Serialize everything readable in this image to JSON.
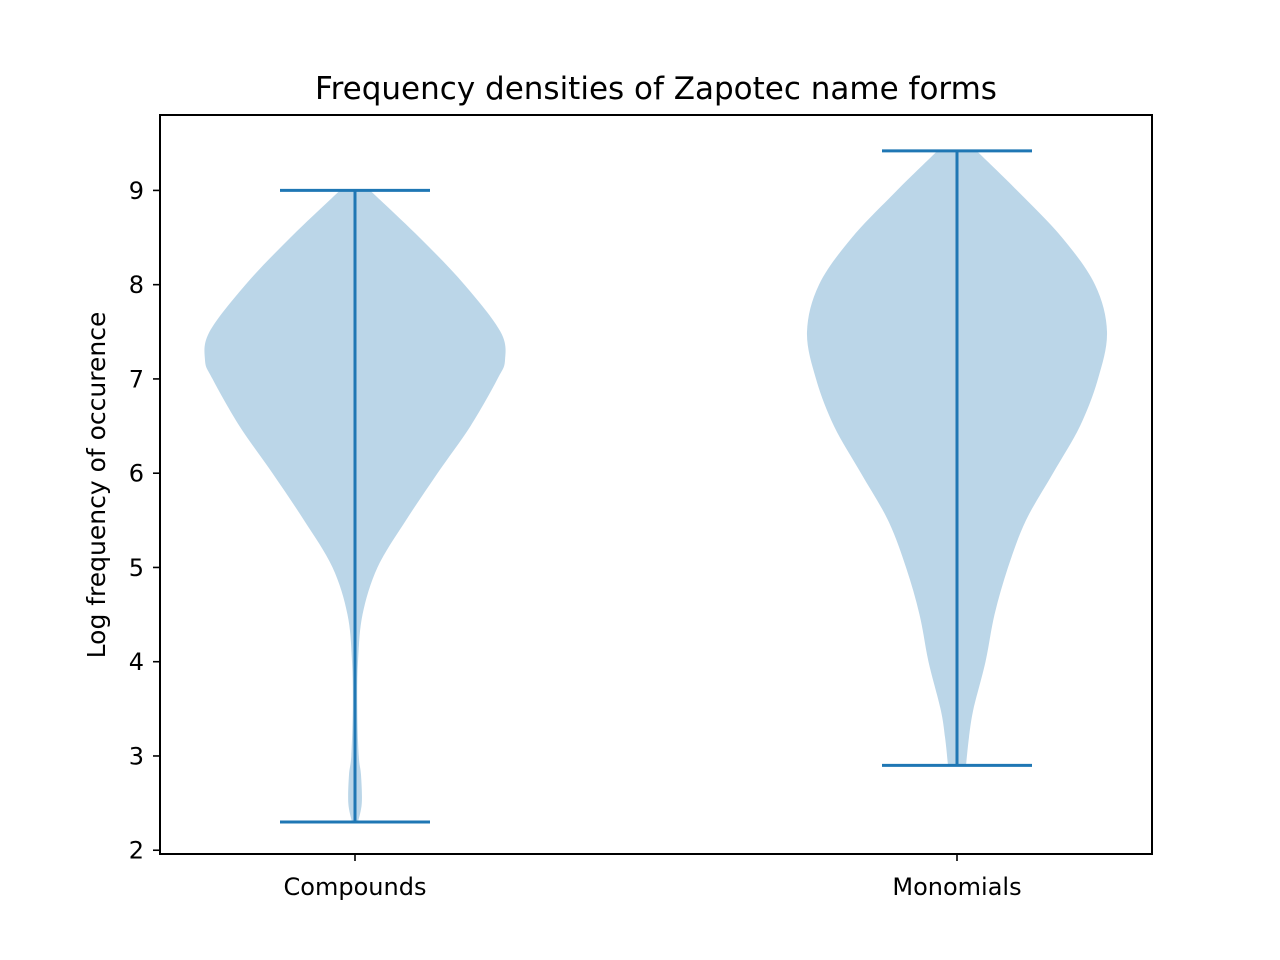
{
  "chart_data": {
    "type": "violin",
    "title": "Frequency densities of Zapotec name forms",
    "xlabel": "",
    "ylabel": "Log frequency of occurence",
    "ylim": [
      1.96,
      9.8
    ],
    "yticks": [
      2,
      3,
      4,
      5,
      6,
      7,
      8,
      9
    ],
    "categories": [
      "Compounds",
      "Monomials"
    ],
    "grid": false,
    "colors": {
      "body": "#1f77b4",
      "body_opacity": 0.3,
      "lines": "#1f77b4",
      "axes": "#000000"
    },
    "violins": [
      {
        "category": "Compounds",
        "min": 2.3,
        "max": 9.0,
        "density_profile": [
          [
            2.3,
            0.02
          ],
          [
            2.5,
            0.045
          ],
          [
            2.8,
            0.04
          ],
          [
            3.0,
            0.025
          ],
          [
            3.5,
            0.015
          ],
          [
            4.0,
            0.02
          ],
          [
            4.5,
            0.05
          ],
          [
            5.0,
            0.15
          ],
          [
            5.5,
            0.34
          ],
          [
            6.0,
            0.55
          ],
          [
            6.5,
            0.77
          ],
          [
            7.0,
            0.95
          ],
          [
            7.2,
            1.0
          ],
          [
            7.5,
            0.97
          ],
          [
            8.0,
            0.73
          ],
          [
            8.5,
            0.43
          ],
          [
            9.0,
            0.1
          ]
        ]
      },
      {
        "category": "Monomials",
        "min": 2.9,
        "max": 9.42,
        "density_profile": [
          [
            2.9,
            0.06
          ],
          [
            3.2,
            0.08
          ],
          [
            3.5,
            0.11
          ],
          [
            4.0,
            0.19
          ],
          [
            4.5,
            0.25
          ],
          [
            5.0,
            0.34
          ],
          [
            5.5,
            0.46
          ],
          [
            6.0,
            0.64
          ],
          [
            6.5,
            0.82
          ],
          [
            7.0,
            0.94
          ],
          [
            7.5,
            1.0
          ],
          [
            8.0,
            0.92
          ],
          [
            8.5,
            0.7
          ],
          [
            9.0,
            0.4
          ],
          [
            9.42,
            0.13
          ]
        ]
      }
    ]
  }
}
